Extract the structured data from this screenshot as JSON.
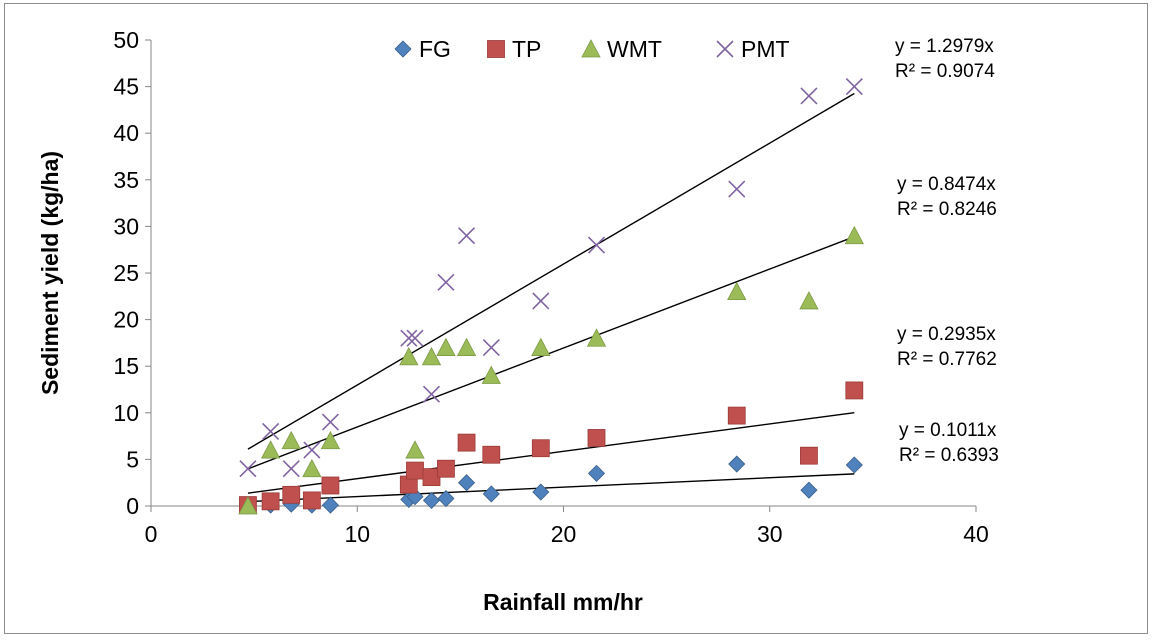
{
  "chart_data": {
    "type": "scatter",
    "title": "",
    "xlabel": "Rainfall mm/hr",
    "ylabel": "Sediment  yield (kg/ha)",
    "xlim": [
      0,
      40
    ],
    "ylim": [
      0,
      50
    ],
    "xticks": [
      0,
      10,
      20,
      30,
      40
    ],
    "yticks": [
      0,
      5,
      10,
      15,
      20,
      25,
      30,
      35,
      40,
      45,
      50
    ],
    "grid": false,
    "legend_position": "top",
    "series": [
      {
        "name": "FG",
        "marker": "diamond",
        "color": "#4f81bd",
        "points": [
          [
            4.7,
            0
          ],
          [
            5.8,
            0.1
          ],
          [
            6.8,
            0.2
          ],
          [
            7.8,
            0.1
          ],
          [
            8.7,
            0.1
          ],
          [
            12.5,
            0.7
          ],
          [
            12.8,
            1.0
          ],
          [
            13.6,
            0.6
          ],
          [
            14.3,
            0.8
          ],
          [
            15.3,
            2.5
          ],
          [
            16.5,
            1.3
          ],
          [
            18.9,
            1.5
          ],
          [
            21.6,
            3.5
          ],
          [
            28.4,
            4.5
          ],
          [
            31.9,
            1.7
          ],
          [
            34.1,
            4.4
          ]
        ],
        "trend_slope": 0.1011,
        "trend_range": [
          4.7,
          34.1
        ],
        "equation": "y = 0.1011x",
        "r2": "R² = 0.6393"
      },
      {
        "name": "TP",
        "marker": "square",
        "color": "#c0504d",
        "points": [
          [
            4.7,
            0.1
          ],
          [
            5.8,
            0.5
          ],
          [
            6.8,
            1.2
          ],
          [
            7.8,
            0.6
          ],
          [
            8.7,
            2.2
          ],
          [
            12.5,
            2.3
          ],
          [
            12.8,
            3.8
          ],
          [
            13.6,
            3.1
          ],
          [
            14.3,
            4.0
          ],
          [
            15.3,
            6.8
          ],
          [
            16.5,
            5.5
          ],
          [
            18.9,
            6.2
          ],
          [
            21.6,
            7.3
          ],
          [
            28.4,
            9.7
          ],
          [
            31.9,
            5.4
          ],
          [
            34.1,
            12.4
          ]
        ],
        "trend_slope": 0.2935,
        "trend_range": [
          4.7,
          34.1
        ],
        "equation": "y = 0.2935x",
        "r2": "R² = 0.7762"
      },
      {
        "name": "WMT",
        "marker": "triangle",
        "color": "#9bbb59",
        "points": [
          [
            4.7,
            0
          ],
          [
            5.8,
            6
          ],
          [
            6.8,
            7
          ],
          [
            7.8,
            4
          ],
          [
            8.7,
            7
          ],
          [
            12.5,
            16
          ],
          [
            12.8,
            6
          ],
          [
            13.6,
            16
          ],
          [
            14.3,
            17
          ],
          [
            15.3,
            17
          ],
          [
            16.5,
            14
          ],
          [
            18.9,
            17
          ],
          [
            21.6,
            18
          ],
          [
            28.4,
            23
          ],
          [
            31.9,
            22
          ],
          [
            34.1,
            29
          ]
        ],
        "trend_slope": 0.8474,
        "trend_range": [
          4.7,
          34.1
        ],
        "equation": "y = 0.8474x",
        "r2": "R² = 0.8246"
      },
      {
        "name": "PMT",
        "marker": "x",
        "color": "#8064a2",
        "points": [
          [
            4.7,
            4
          ],
          [
            5.8,
            8
          ],
          [
            6.8,
            4
          ],
          [
            7.8,
            6
          ],
          [
            8.7,
            9
          ],
          [
            12.5,
            18
          ],
          [
            12.8,
            18
          ],
          [
            13.6,
            12
          ],
          [
            14.3,
            24
          ],
          [
            15.3,
            29
          ],
          [
            16.5,
            17
          ],
          [
            18.9,
            22
          ],
          [
            21.6,
            28
          ],
          [
            28.4,
            34
          ],
          [
            31.9,
            44
          ],
          [
            34.1,
            45
          ]
        ],
        "trend_slope": 1.2979,
        "trend_range": [
          4.7,
          34.1
        ],
        "equation": "y = 1.2979x",
        "r2": "R² = 0.9074"
      }
    ]
  }
}
